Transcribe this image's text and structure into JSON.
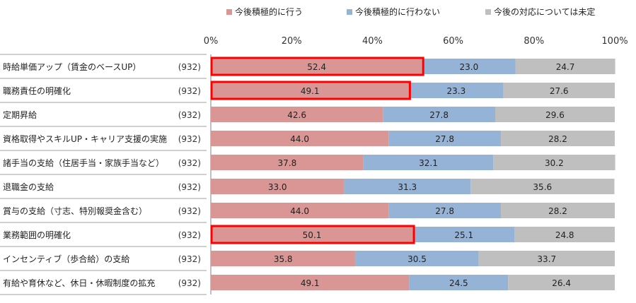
{
  "chart_data": {
    "type": "bar",
    "orientation": "horizontal",
    "stacked": true,
    "xlim": [
      0,
      100
    ],
    "x_ticks": [
      "0%",
      "20%",
      "40%",
      "60%",
      "80%",
      "100%"
    ],
    "categories": [
      "時給単価アップ（賃金のベースUP）",
      "職務責任の明確化",
      "定期昇給",
      "資格取得やスキルUP・キャリア支援の実施",
      "諸手当の支給（住居手当・家族手当など）",
      "退職金の支給",
      "賞与の支給（寸志、特別報奨金含む）",
      "業務範囲の明確化",
      "インセンティブ（歩合給）の支給",
      "有給や育休など、休日・休暇制度の拡充"
    ],
    "n_labels": [
      "(932)",
      "(932)",
      "(932)",
      "(932)",
      "(932)",
      "(932)",
      "(932)",
      "(932)",
      "(932)",
      "(932)"
    ],
    "series": [
      {
        "name": "今後積極的に行う",
        "color": "#da9694",
        "values": [
          52.4,
          49.1,
          42.6,
          44.0,
          37.8,
          33.0,
          44.0,
          50.1,
          35.8,
          49.1
        ],
        "value_labels": [
          "52.4",
          "49.1",
          "42.6",
          "44.0",
          "37.8",
          "33.0",
          "44.0",
          "50.1",
          "35.8",
          "49.1"
        ]
      },
      {
        "name": "今後積極的に行わない",
        "color": "#95b3d7",
        "values": [
          23.0,
          23.3,
          27.8,
          27.8,
          32.1,
          31.3,
          27.8,
          25.1,
          30.5,
          24.5
        ],
        "value_labels": [
          "23.0",
          "23.3",
          "27.8",
          "27.8",
          "32.1",
          "31.3",
          "27.8",
          "25.1",
          "30.5",
          "24.5"
        ]
      },
      {
        "name": "今後の対応については未定",
        "color": "#bfbfbf",
        "values": [
          24.7,
          27.6,
          29.6,
          28.2,
          30.2,
          35.6,
          28.2,
          24.8,
          33.7,
          26.4
        ],
        "value_labels": [
          "24.7",
          "27.6",
          "29.6",
          "28.2",
          "30.2",
          "35.6",
          "28.2",
          "24.8",
          "33.7",
          "26.4"
        ]
      }
    ],
    "highlighted_categories": [
      0,
      1,
      7
    ],
    "highlight_color": "#ff0000",
    "legend_position": "top"
  }
}
